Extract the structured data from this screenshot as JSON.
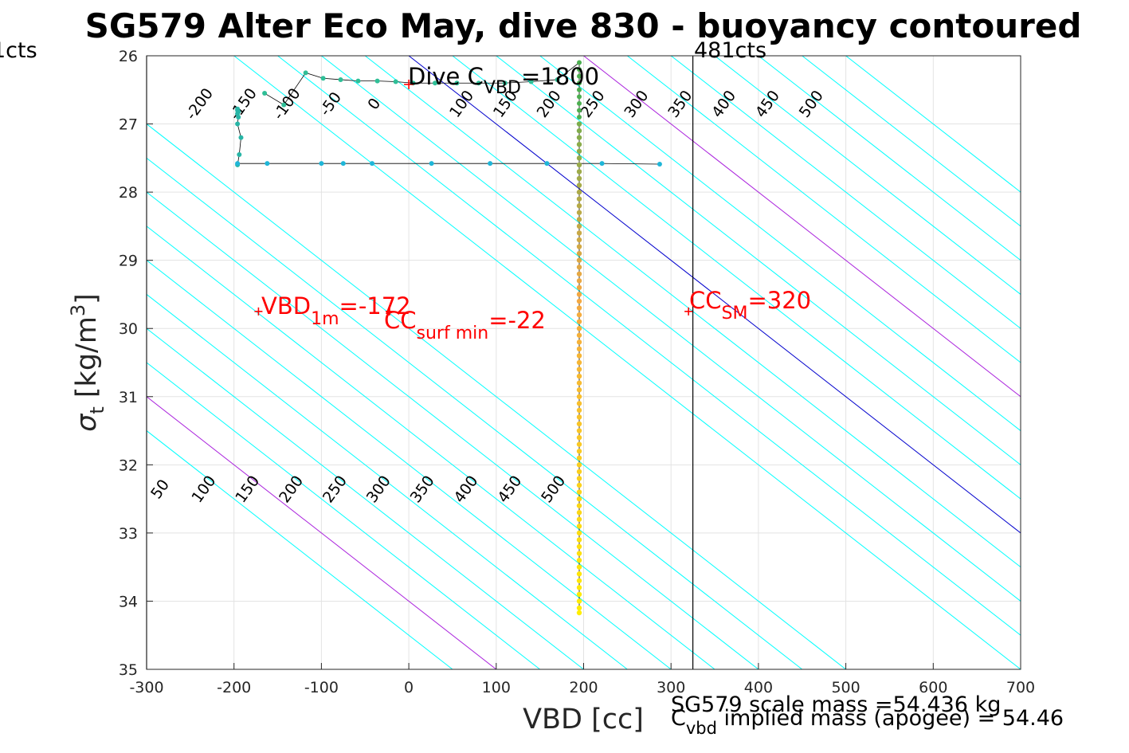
{
  "chart_data": {
    "type": "scatter",
    "title": "SG579 Alter Eco May, dive 830 - buoyancy contoured",
    "xlabel": "VBD [cc]",
    "ylabel": "σ_t [kg/m^3]",
    "xlim": [
      -300,
      700
    ],
    "ylim": [
      26,
      35
    ],
    "y_reversed": true,
    "x_ticks": [
      -300,
      -200,
      -100,
      0,
      100,
      200,
      300,
      400,
      500,
      600,
      700
    ],
    "y_ticks": [
      26,
      27,
      28,
      29,
      30,
      31,
      32,
      33,
      34,
      35
    ],
    "grid": true,
    "contour_slope_sigma_per_cc": 0.01,
    "contours_upper": {
      "sigma0": 26,
      "levels": [
        -200,
        -150,
        -100,
        -50,
        0,
        50,
        100,
        150,
        200,
        250,
        300,
        350,
        400,
        450,
        500
      ],
      "labels": [
        "-200",
        "-150",
        "-100",
        "-50",
        "0",
        "100",
        "150",
        "200",
        "250",
        "300",
        "350",
        "400",
        "450",
        "500"
      ],
      "label_x": [
        -235,
        -185,
        -135,
        -85,
        -35,
        65,
        115,
        165,
        215,
        265,
        315,
        365,
        415,
        465
      ],
      "label_y": 26.75
    },
    "contours_lower": {
      "sigma0": 35,
      "levels": [
        50,
        100,
        150,
        200,
        250,
        300,
        350,
        400,
        450,
        500
      ],
      "labels": [
        "50",
        "100",
        "150",
        "200",
        "250",
        "300",
        "350",
        "400",
        "450",
        "500"
      ],
      "label_x": [
        -280,
        -230,
        -180,
        -130,
        -80,
        -30,
        20,
        70,
        120,
        170
      ],
      "label_y": 32.4
    },
    "highlight_contours": [
      {
        "sigma0": 26,
        "level": 0,
        "color": "#0000cd"
      },
      {
        "sigma0": 35,
        "level": 100,
        "color": "#aa22dd"
      },
      {
        "sigma0": 26,
        "level": 200,
        "color": "#aa22dd"
      }
    ],
    "vbd_limit_lines": [
      {
        "x": -300,
        "label": "1cts"
      },
      {
        "x": 325,
        "label": "481cts"
      }
    ],
    "dive_label": {
      "text": "Dive C",
      "sub": "VBD",
      "rest": "=1800"
    },
    "marker_points": [
      {
        "x": -172,
        "y": 29.75
      },
      {
        "x": -22,
        "y": 29.75
      },
      {
        "x": 320,
        "y": 29.75
      },
      {
        "x": 0,
        "y": 26.42
      }
    ],
    "annotations": [
      {
        "main": "VBD",
        "sub": "1m",
        "rest": "=-172"
      },
      {
        "main": "CC",
        "sub": "surf min",
        "rest": "=-22"
      },
      {
        "main": "CC",
        "sub": "SM",
        "rest": "=320"
      }
    ],
    "footer": {
      "line1": "SG579 scale mass =54.436 kg",
      "line2_main": "C",
      "line2_sub": "vbd",
      "line2_rest": "  implied mass (apogee) = 54.46"
    },
    "series": [
      {
        "x": [
          -165,
          -143,
          -118,
          -98,
          -78,
          -58,
          -36,
          -15,
          5,
          30,
          55,
          80,
          110,
          140,
          170,
          195,
          195,
          195,
          195,
          195,
          195,
          195,
          195,
          195
        ],
        "y": [
          26.55,
          26.72,
          26.25,
          26.33,
          26.35,
          26.37,
          26.37,
          26.38,
          26.4,
          26.4,
          26.4,
          26.4,
          26.4,
          26.38,
          26.35,
          26.1,
          26.2,
          26.3,
          26.4,
          26.5,
          26.6,
          26.7,
          26.8,
          26.9
        ]
      },
      {
        "x": [
          -196,
          -194,
          -192,
          -196,
          -195,
          -196,
          -195,
          -196,
          -196
        ],
        "y": [
          27.6,
          27.45,
          27.2,
          27.0,
          26.9,
          26.85,
          26.82,
          26.8,
          26.78
        ]
      },
      {
        "x": [
          -196,
          -162,
          -100,
          -75,
          -42,
          26,
          93,
          158,
          221,
          287
        ],
        "y": [
          27.58,
          27.58,
          27.58,
          27.58,
          27.58,
          27.58,
          27.58,
          27.58,
          27.58,
          27.59
        ]
      },
      {
        "x": 195,
        "y": [
          27.0,
          27.1,
          27.2,
          27.3,
          27.4,
          27.5,
          27.6,
          27.7,
          27.8,
          27.9,
          28.0,
          28.1,
          28.2,
          28.3,
          28.4,
          28.5,
          28.6,
          28.7,
          28.8,
          28.9,
          29.0,
          29.1,
          29.2,
          29.3,
          29.4,
          29.5,
          29.6,
          29.7,
          29.8,
          29.9,
          30.0,
          30.1,
          30.2,
          30.3,
          30.4,
          30.5,
          30.6,
          30.7,
          30.8,
          30.9,
          31.0,
          31.1,
          31.2,
          31.3,
          31.4,
          31.5,
          31.6,
          31.7,
          31.8,
          31.9,
          32.0,
          32.1,
          32.2,
          32.3,
          32.4,
          32.5,
          32.6,
          32.7,
          32.8,
          32.9,
          33.0,
          33.1,
          33.2,
          33.3,
          33.4,
          33.5,
          33.6,
          33.7,
          33.8,
          33.9,
          34.0,
          34.1,
          34.17
        ]
      }
    ],
    "colors": {
      "contour": "#00ffff",
      "annotation": "#ff0000",
      "track": "#000000",
      "descent_start": "#3b4cf0",
      "profile_top": "#4caf50",
      "profile_mid": "#f4a742",
      "profile_bottom": "#ffee00"
    }
  }
}
